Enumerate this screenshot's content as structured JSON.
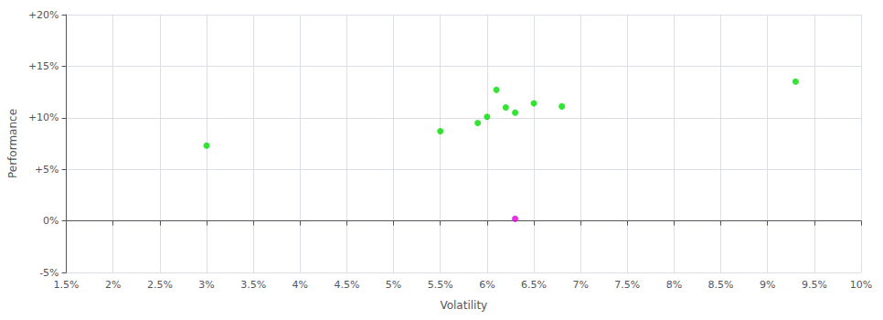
{
  "chart_data": {
    "type": "scatter",
    "xlabel": "Volatility",
    "ylabel": "Performance",
    "xlim": [
      0.015,
      0.1
    ],
    "ylim": [
      -0.05,
      0.2
    ],
    "xticks": [
      {
        "value": 0.015,
        "label": "1.5%"
      },
      {
        "value": 0.02,
        "label": "2%"
      },
      {
        "value": 0.025,
        "label": "2.5%"
      },
      {
        "value": 0.03,
        "label": "3%"
      },
      {
        "value": 0.035,
        "label": "3.5%"
      },
      {
        "value": 0.04,
        "label": "4%"
      },
      {
        "value": 0.045,
        "label": "4.5%"
      },
      {
        "value": 0.05,
        "label": "5%"
      },
      {
        "value": 0.055,
        "label": "5.5%"
      },
      {
        "value": 0.06,
        "label": "6%"
      },
      {
        "value": 0.065,
        "label": "6.5%"
      },
      {
        "value": 0.07,
        "label": "7%"
      },
      {
        "value": 0.075,
        "label": "7.5%"
      },
      {
        "value": 0.08,
        "label": "8%"
      },
      {
        "value": 0.085,
        "label": "8.5%"
      },
      {
        "value": 0.09,
        "label": "9%"
      },
      {
        "value": 0.095,
        "label": "9.5%"
      },
      {
        "value": 0.1,
        "label": "10%"
      }
    ],
    "yticks": [
      {
        "value": -0.05,
        "label": "-5%"
      },
      {
        "value": 0.0,
        "label": "0%"
      },
      {
        "value": 0.05,
        "label": "+5%"
      },
      {
        "value": 0.1,
        "label": "+10%"
      },
      {
        "value": 0.15,
        "label": "+15%"
      },
      {
        "value": 0.2,
        "label": "+20%"
      }
    ],
    "grid": true,
    "series": [
      {
        "color": "#00dd00",
        "x": [
          0.03,
          0.055,
          0.059,
          0.06,
          0.061,
          0.062,
          0.063,
          0.065,
          0.068,
          0.093
        ],
        "values": [
          0.073,
          0.087,
          0.095,
          0.101,
          0.127,
          0.11,
          0.105,
          0.114,
          0.111,
          0.135
        ]
      },
      {
        "color": "#dd00dd",
        "x": [
          0.063
        ],
        "values": [
          0.002
        ]
      }
    ]
  }
}
